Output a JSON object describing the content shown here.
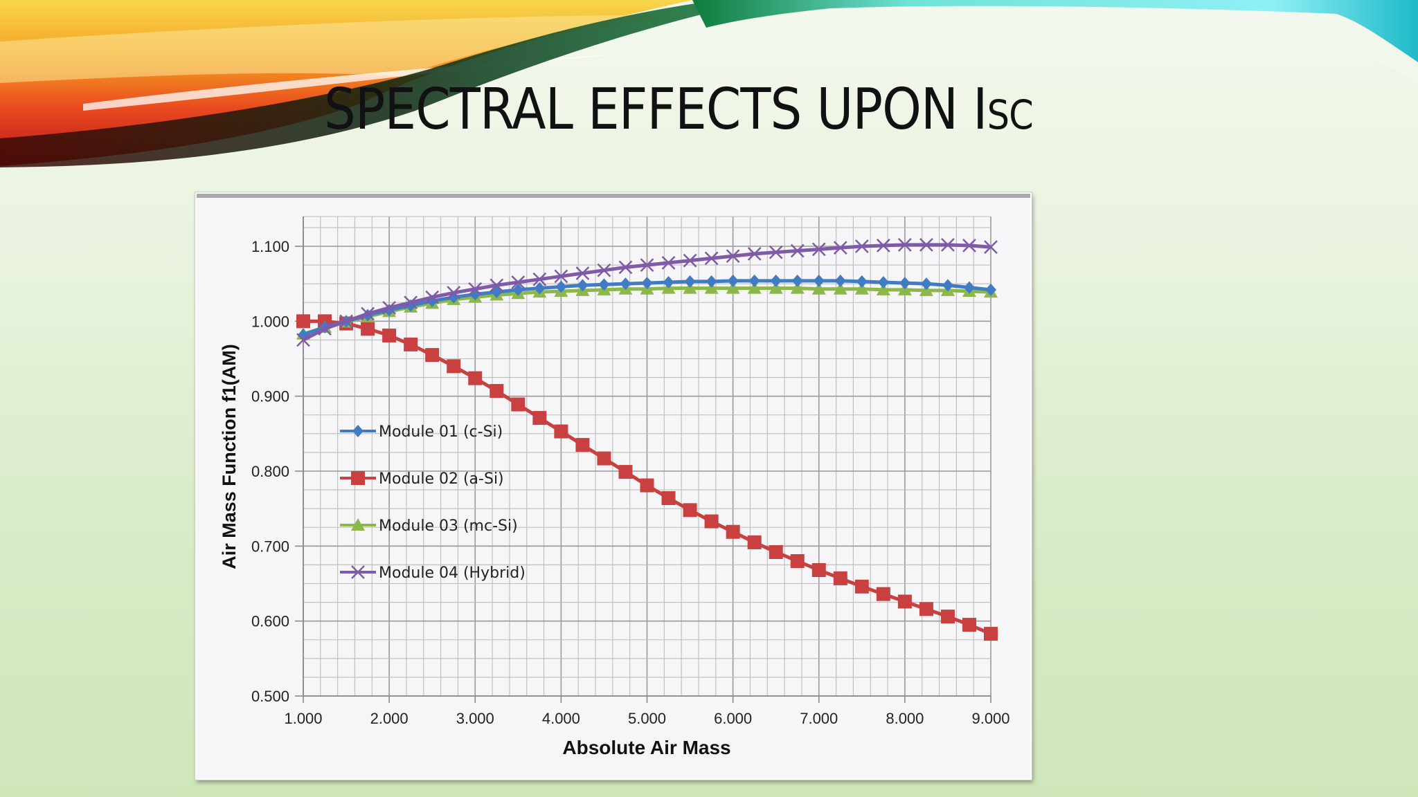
{
  "slide": {
    "title_main": "SPECTRAL EFFECTS UPON I",
    "title_sub": "SC",
    "accent_colors": {
      "swoosh_red": "#d8261f",
      "swoosh_orange": "#f39a1e",
      "swoosh_yellow": "#f6d34a",
      "swoosh_green": "#0f7a3a",
      "swoosh_cyan": "#3fd9e6"
    }
  },
  "chart_data": {
    "type": "line",
    "title": "",
    "xlabel": "Absolute Air Mass",
    "ylabel": "Air Mass Function f1(AM)",
    "xlim": [
      1.0,
      9.0
    ],
    "ylim": [
      0.5,
      1.1
    ],
    "x_ticks": [
      "1.000",
      "2.000",
      "3.000",
      "4.000",
      "5.000",
      "6.000",
      "7.000",
      "8.000",
      "9.000"
    ],
    "y_ticks": [
      "0.500",
      "0.600",
      "0.700",
      "0.800",
      "0.900",
      "1.000",
      "1.100"
    ],
    "grid": true,
    "legend_position": "inside-left",
    "x": [
      1.0,
      1.25,
      1.5,
      1.75,
      2.0,
      2.25,
      2.5,
      2.75,
      3.0,
      3.25,
      3.5,
      3.75,
      4.0,
      4.25,
      4.5,
      4.75,
      5.0,
      5.25,
      5.5,
      5.75,
      6.0,
      6.25,
      6.5,
      6.75,
      7.0,
      7.25,
      7.5,
      7.75,
      8.0,
      8.25,
      8.5,
      8.75,
      9.0
    ],
    "series": [
      {
        "name": "Module 01 (c-Si)",
        "color": "#3f7cc4",
        "marker": "diamond",
        "values": [
          0.982,
          0.992,
          1.0,
          1.008,
          1.015,
          1.021,
          1.027,
          1.032,
          1.036,
          1.039,
          1.042,
          1.044,
          1.046,
          1.048,
          1.049,
          1.05,
          1.051,
          1.052,
          1.053,
          1.053,
          1.054,
          1.054,
          1.054,
          1.054,
          1.054,
          1.054,
          1.053,
          1.052,
          1.051,
          1.05,
          1.048,
          1.045,
          1.042
        ]
      },
      {
        "name": "Module 02 (a-Si)",
        "color": "#c94040",
        "marker": "square",
        "values": [
          1.0,
          1.0,
          0.997,
          0.99,
          0.981,
          0.969,
          0.955,
          0.94,
          0.924,
          0.907,
          0.889,
          0.871,
          0.853,
          0.835,
          0.817,
          0.799,
          0.781,
          0.764,
          0.748,
          0.733,
          0.719,
          0.705,
          0.692,
          0.68,
          0.668,
          0.657,
          0.646,
          0.636,
          0.626,
          0.616,
          0.606,
          0.595,
          0.583
        ]
      },
      {
        "name": "Module 03 (mc-Si)",
        "color": "#8cb84a",
        "marker": "triangle",
        "values": [
          0.983,
          0.992,
          0.999,
          1.006,
          1.013,
          1.019,
          1.024,
          1.029,
          1.032,
          1.035,
          1.037,
          1.039,
          1.04,
          1.041,
          1.042,
          1.043,
          1.043,
          1.044,
          1.044,
          1.044,
          1.044,
          1.044,
          1.044,
          1.044,
          1.043,
          1.043,
          1.043,
          1.042,
          1.042,
          1.041,
          1.041,
          1.04,
          1.039
        ]
      },
      {
        "name": "Module 04 (Hybrid)",
        "color": "#7e5aa8",
        "marker": "x",
        "values": [
          0.975,
          0.99,
          1.0,
          1.01,
          1.018,
          1.025,
          1.032,
          1.038,
          1.043,
          1.048,
          1.052,
          1.056,
          1.06,
          1.064,
          1.068,
          1.072,
          1.075,
          1.078,
          1.081,
          1.084,
          1.087,
          1.09,
          1.092,
          1.094,
          1.096,
          1.098,
          1.1,
          1.101,
          1.102,
          1.102,
          1.102,
          1.101,
          1.099
        ]
      }
    ]
  }
}
